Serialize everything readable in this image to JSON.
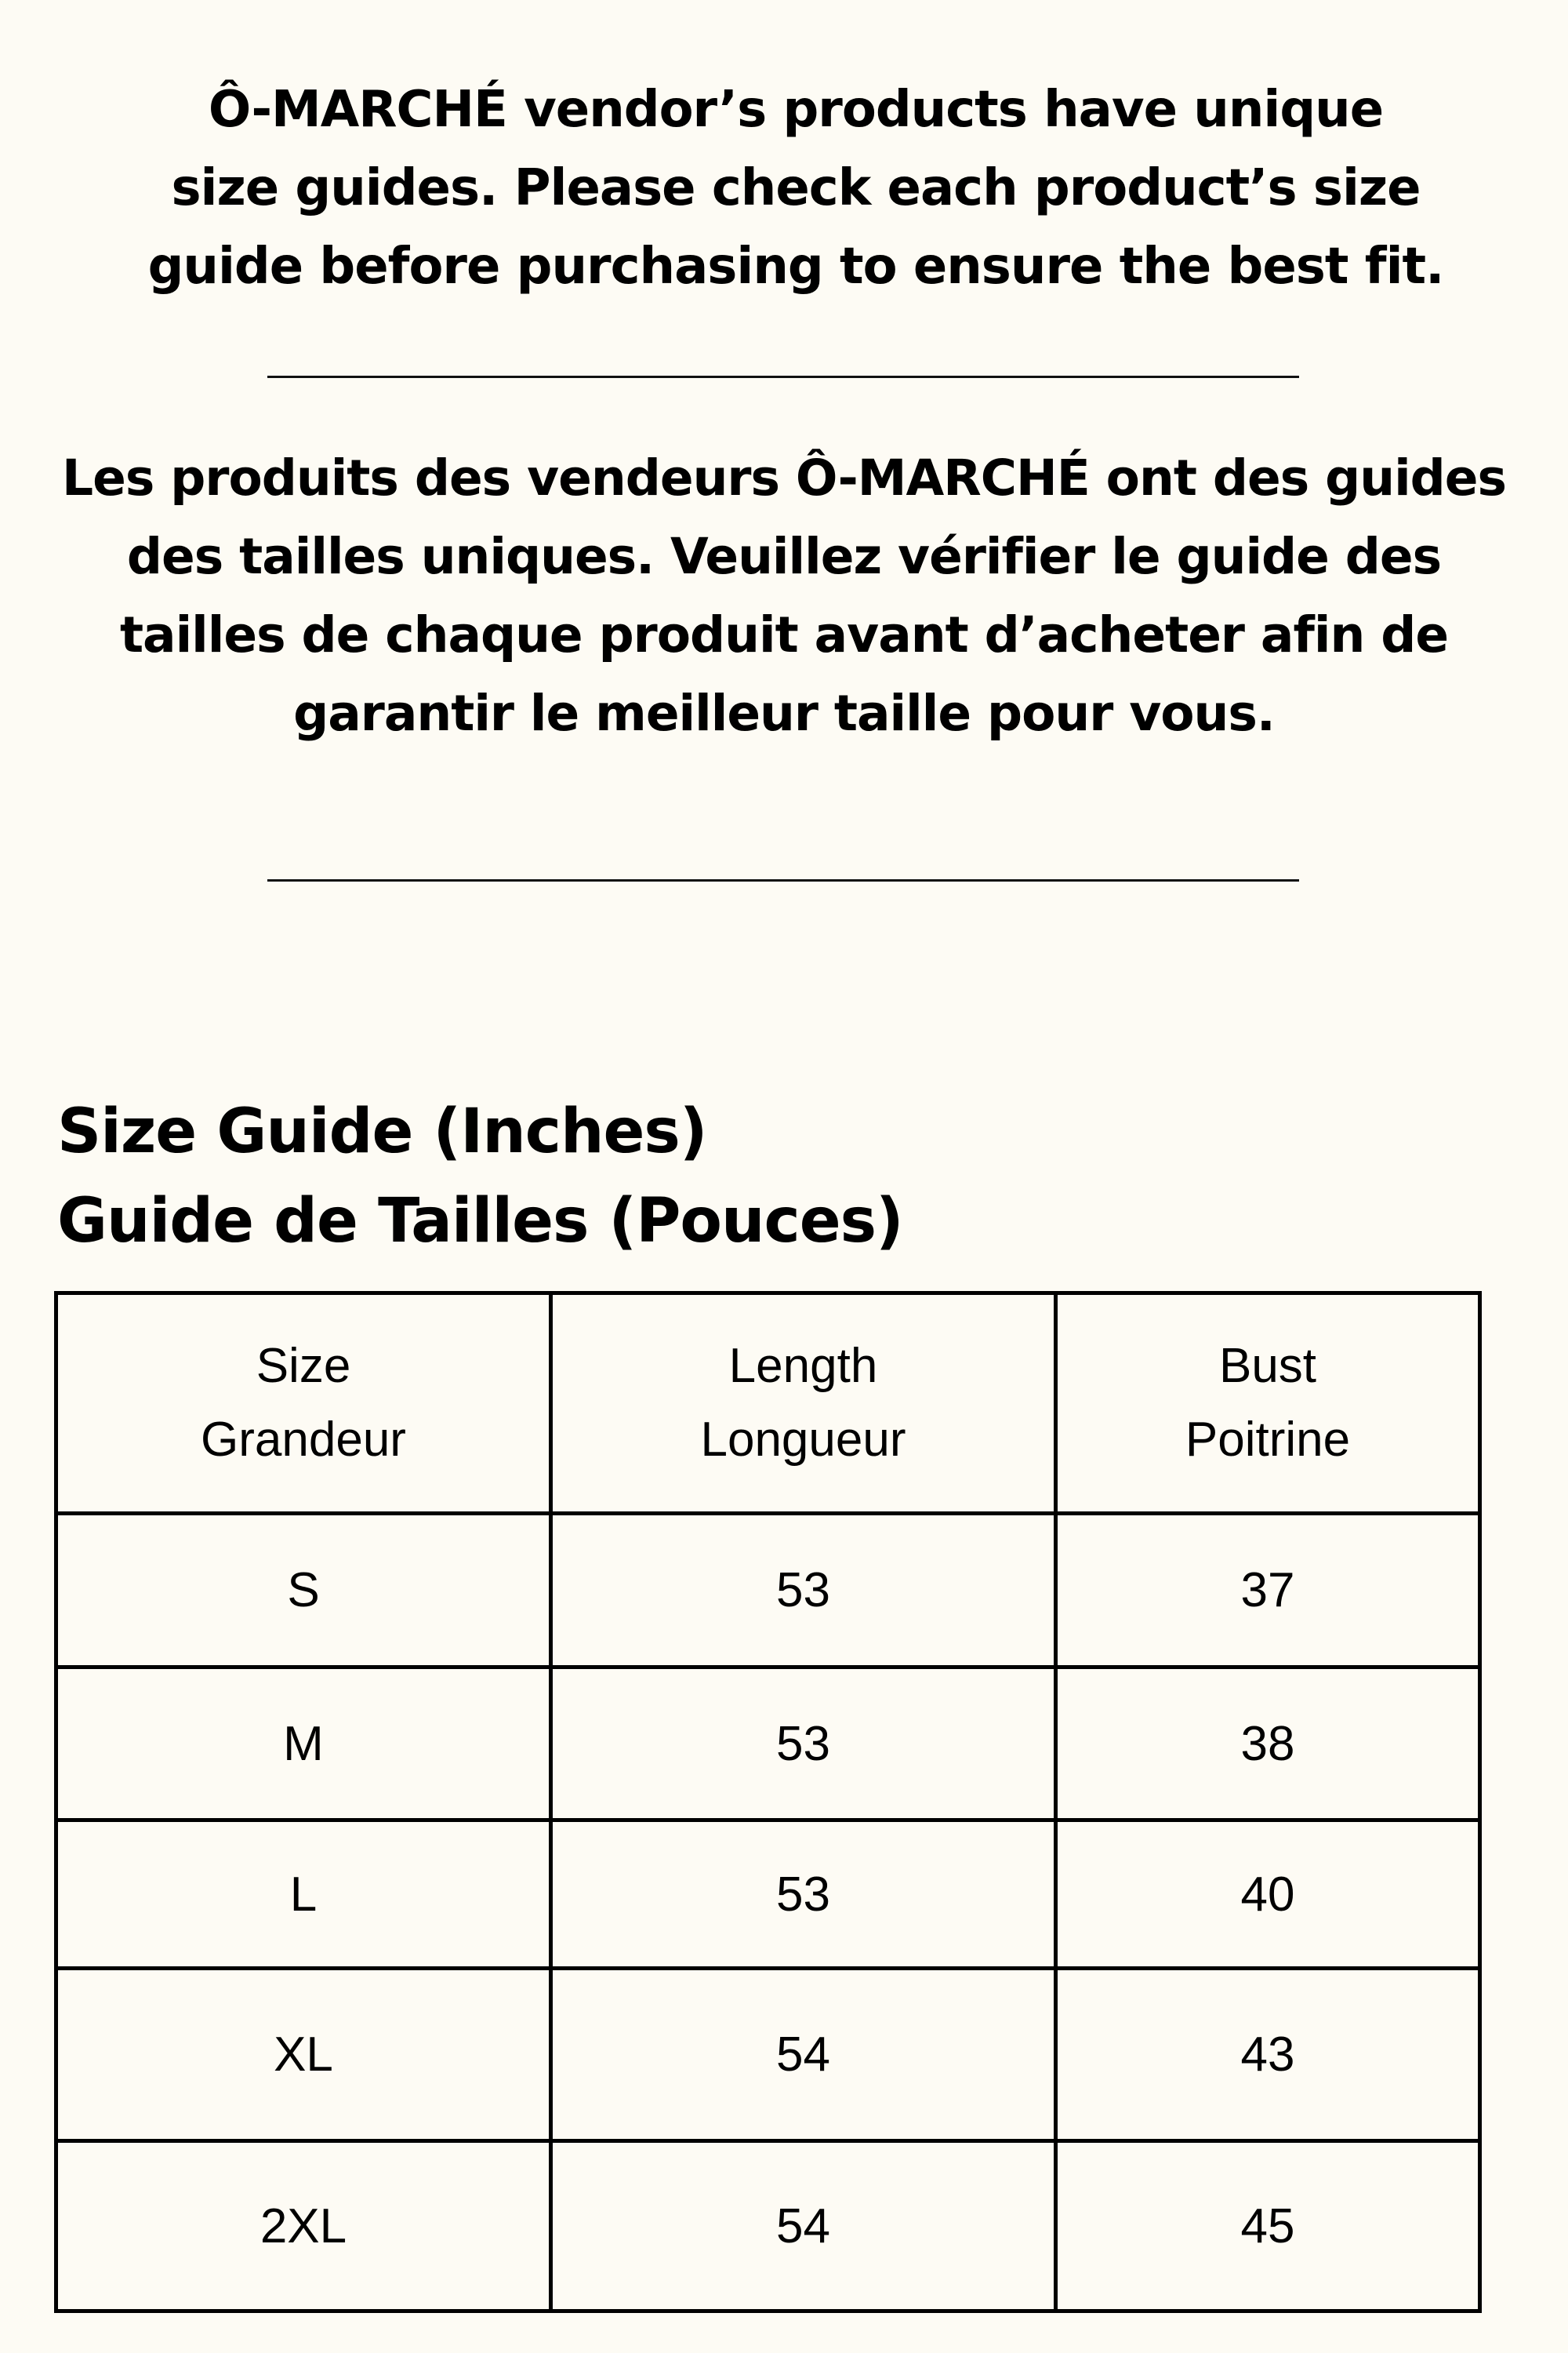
{
  "intro_en": [
    "Ô-MARCHÉ vendor’s products have unique",
    "size guides.  Please check each product’s size",
    "guide before purchasing to ensure the best fit."
  ],
  "intro_fr": [
    "Les produits des vendeurs Ô-MARCHÉ ont des guides",
    "des tailles uniques. Veuillez vérifier le guide des",
    "tailles de chaque produit avant d’acheter afin de",
    "garantir le meilleur taille pour vous."
  ],
  "title": {
    "en": "Size  Guide (Inches)",
    "fr": "Guide de Tailles (Pouces)"
  },
  "table": {
    "headers": [
      {
        "en": "Size",
        "fr": "Grandeur"
      },
      {
        "en": "Length",
        "fr": "Longueur"
      },
      {
        "en": "Bust",
        "fr": "Poitrine"
      }
    ],
    "rows": [
      [
        "S",
        "53",
        "37"
      ],
      [
        "M",
        "53",
        "38"
      ],
      [
        "L",
        "53",
        "40"
      ],
      [
        "XL",
        "54",
        "43"
      ],
      [
        "2XL",
        "54",
        "45"
      ]
    ]
  }
}
